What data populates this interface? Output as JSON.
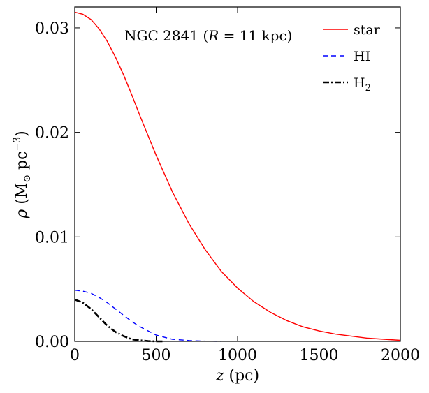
{
  "chart_data": {
    "type": "line",
    "annotation": {
      "prefix": "NGC 2841 (",
      "var": "R",
      "suffix": " = 11 kpc)"
    },
    "xlabel": {
      "var": "z",
      "unit": " (pc)"
    },
    "ylabel": {
      "var": "ρ",
      "open": " (M",
      "sub": "⊙",
      "mid": " pc",
      "sup": "−3",
      "close": ")"
    },
    "xlim": [
      0,
      2000
    ],
    "ylim": [
      0,
      0.032
    ],
    "xticks": [
      0,
      500,
      1000,
      1500,
      2000
    ],
    "xtick_labels": [
      "0",
      "500",
      "1000",
      "1500",
      "2000"
    ],
    "yticks": [
      0.0,
      0.01,
      0.02,
      0.03
    ],
    "ytick_labels": [
      "0.00",
      "0.01",
      "0.02",
      "0.03"
    ],
    "legend_position": "top-right",
    "series": [
      {
        "name": "star",
        "label_main": "star",
        "label_sub": "",
        "color": "#ff0000",
        "style": "solid",
        "x": [
          0,
          50,
          100,
          150,
          200,
          250,
          300,
          350,
          400,
          450,
          500,
          600,
          700,
          800,
          900,
          1000,
          1100,
          1200,
          1300,
          1400,
          1500,
          1600,
          1700,
          1800,
          1900,
          2000
        ],
        "y": [
          0.0315,
          0.0313,
          0.0308,
          0.0299,
          0.0287,
          0.0272,
          0.0255,
          0.0236,
          0.0216,
          0.0197,
          0.0178,
          0.0143,
          0.0113,
          0.0088,
          0.0067,
          0.0051,
          0.0038,
          0.0028,
          0.002,
          0.0014,
          0.001,
          0.0007,
          0.0005,
          0.0003,
          0.0002,
          0.0001
        ]
      },
      {
        "name": "HI",
        "label_main": "HI",
        "label_sub": "",
        "color": "#0000ff",
        "style": "dashed",
        "x": [
          0,
          50,
          100,
          150,
          200,
          250,
          300,
          350,
          400,
          450,
          500,
          550,
          600,
          700,
          800,
          900
        ],
        "y": [
          0.0049,
          0.0048,
          0.0046,
          0.0042,
          0.0037,
          0.0031,
          0.0025,
          0.0019,
          0.0014,
          0.001,
          0.0006,
          0.0004,
          0.0002,
          8e-05,
          2e-05,
          0.0
        ]
      },
      {
        "name": "H2",
        "label_main": "H",
        "label_sub": "2",
        "color": "#000000",
        "style": "dashdot",
        "x": [
          0,
          50,
          100,
          150,
          200,
          250,
          300,
          350,
          400,
          450,
          500,
          550
        ],
        "y": [
          0.004,
          0.0037,
          0.0031,
          0.0023,
          0.0015,
          0.0009,
          0.0005,
          0.0002,
          0.0001,
          3e-05,
          0.0,
          0.0
        ]
      }
    ]
  }
}
